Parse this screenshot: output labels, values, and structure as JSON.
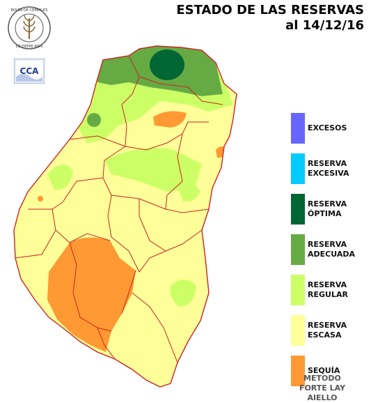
{
  "header": {
    "title_line1": "ESTADO DE LAS RESERVAS",
    "title_line2": "al 14/12/16"
  },
  "logos": {
    "seal_text": "BOLSA DE CEREALES DE ENTRE RIOS",
    "cca_text": "CCA"
  },
  "legend": {
    "items": [
      {
        "line1": "EXCESOS",
        "line2": "",
        "color": "#6666ff"
      },
      {
        "line1": "RESERVA",
        "line2": "EXCESIVA",
        "color": "#00ccff"
      },
      {
        "line1": "RESERVA",
        "line2": "ÓPTIMA",
        "color": "#006633"
      },
      {
        "line1": "RESERVA",
        "line2": "ADECUADA",
        "color": "#66aa44"
      },
      {
        "line1": "RESERVA",
        "line2": "REGULAR",
        "color": "#ccff66"
      },
      {
        "line1": "RESERVA",
        "line2": "ESCASA",
        "color": "#ffff99"
      },
      {
        "line1": "SEQUÍA",
        "line2": "",
        "color": "#ff9933"
      }
    ]
  },
  "method": {
    "line1": "METODO",
    "line2": "FORTE LAY",
    "line3": "AIELLO"
  },
  "map": {
    "region": "Entre Ríos",
    "border_color": "#cc2222",
    "classes_present": [
      "RESERVA ÓPTIMA",
      "RESERVA ADECUADA",
      "RESERVA REGULAR",
      "RESERVA ESCASA",
      "SEQUÍA"
    ]
  }
}
